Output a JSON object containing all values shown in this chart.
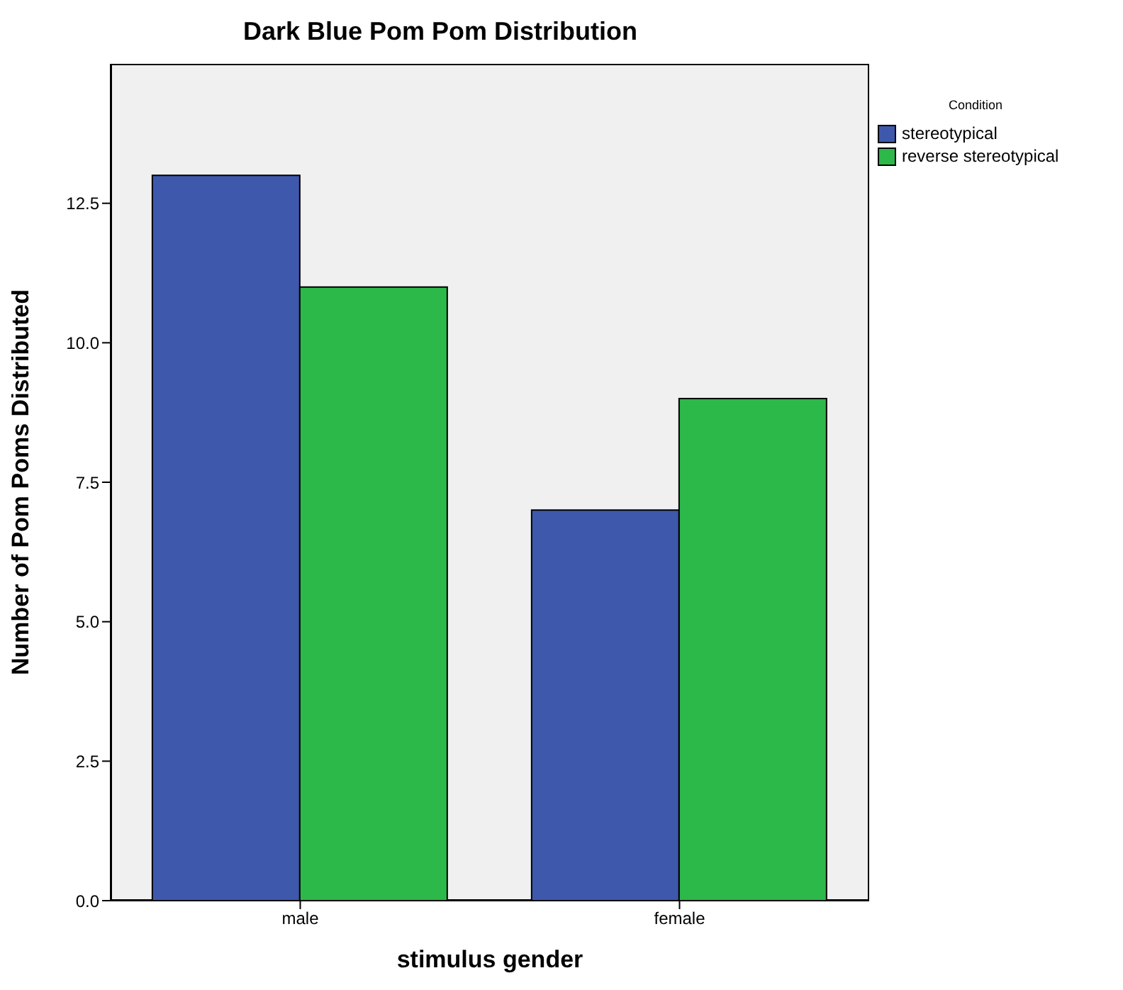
{
  "chart_data": {
    "type": "bar",
    "title": "Dark Blue Pom Pom Distribution",
    "xlabel": "stimulus gender",
    "ylabel": "Number of Pom Poms Distributed",
    "legend_title": "Condition",
    "categories": [
      "male",
      "female"
    ],
    "series": [
      {
        "name": "stereotypical",
        "color": "#3e58ac",
        "values": [
          13,
          7
        ]
      },
      {
        "name": "reverse stereotypical",
        "color": "#2db84a",
        "values": [
          11,
          9
        ]
      }
    ],
    "ylim": [
      0,
      15
    ],
    "yticks": [
      {
        "value": 0,
        "label": "0.0"
      },
      {
        "value": 2.5,
        "label": "2.5"
      },
      {
        "value": 5,
        "label": "5.0"
      },
      {
        "value": 7.5,
        "label": "7.5"
      },
      {
        "value": 10,
        "label": "10.0"
      },
      {
        "value": 12.5,
        "label": "12.5"
      }
    ],
    "grid": false,
    "legend": "top right"
  }
}
